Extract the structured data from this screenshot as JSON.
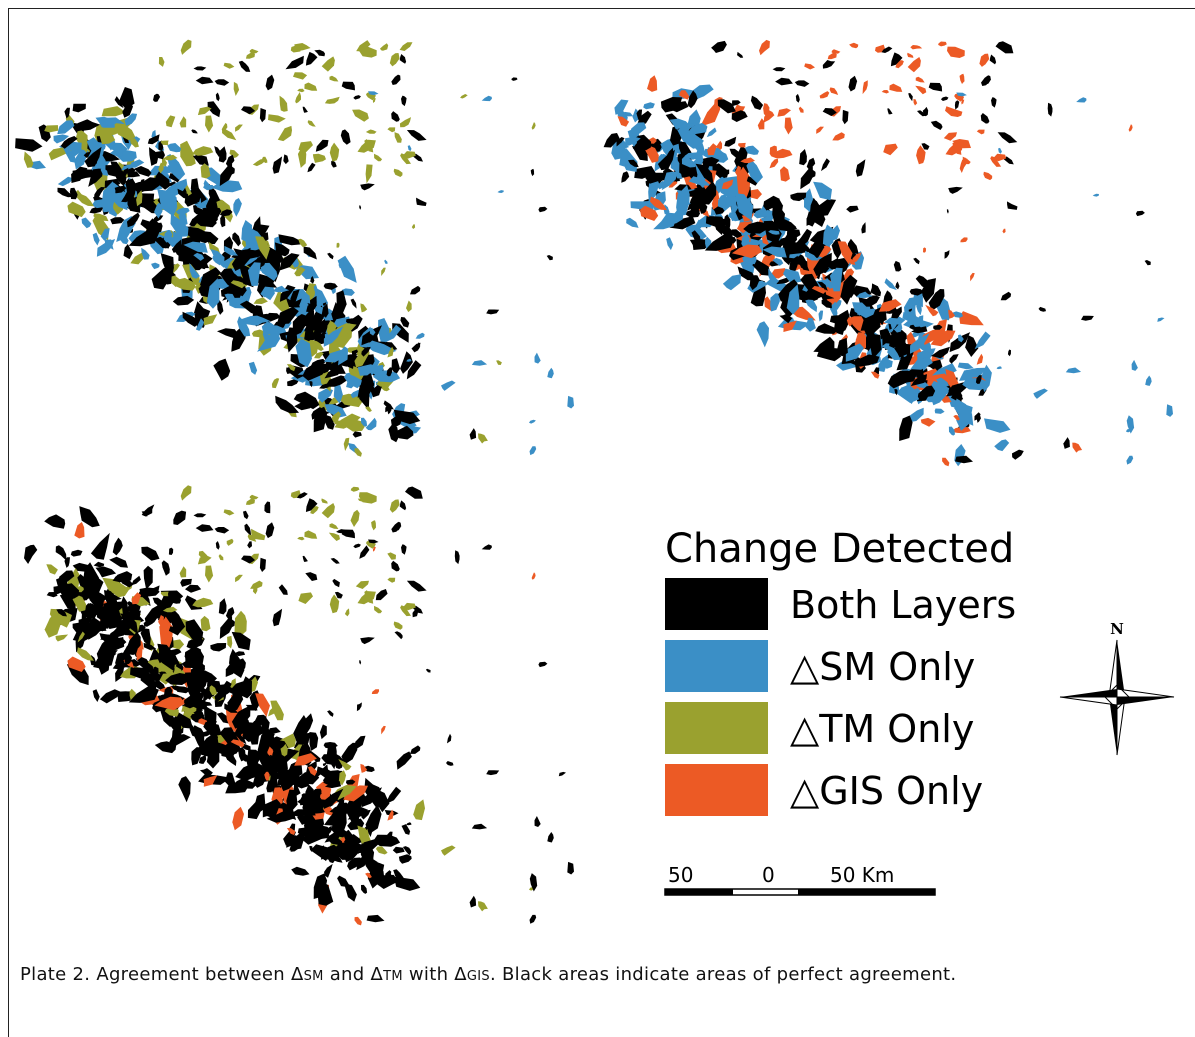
{
  "legend": {
    "title": "Change Detected",
    "items": [
      {
        "label": "Both Layers",
        "color": "#000000"
      },
      {
        "label": "△SM Only",
        "color": "#3b8fc6"
      },
      {
        "label": "△TM Only",
        "color": "#9aa12f"
      },
      {
        "label": "△GIS Only",
        "color": "#ec5a25"
      }
    ]
  },
  "north": "N",
  "scale": {
    "labels": [
      "50",
      "0",
      "50 Km"
    ]
  },
  "caption": [
    "Plate 2. Agreement between Δ",
    "SM",
    " and Δ",
    "TM",
    " with Δ",
    "GIS",
    ". Black areas indicate areas of perfect agreement."
  ]
}
